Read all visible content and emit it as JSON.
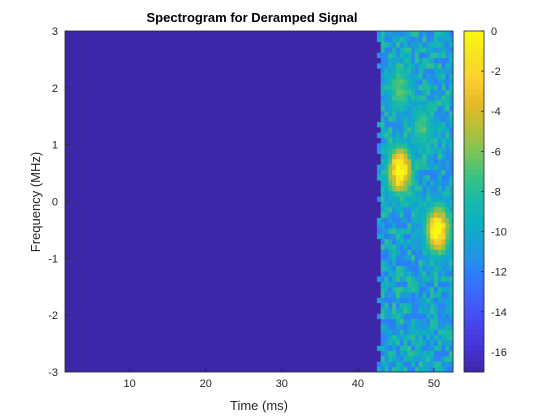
{
  "chart_data": {
    "type": "heatmap",
    "title": "Spectrogram for Deramped Signal",
    "xlabel": "Time (ms)",
    "ylabel": "Frequency (MHz)",
    "xlim": [
      1.5,
      52.5
    ],
    "ylim": [
      -3,
      3
    ],
    "x_ticks": [
      10,
      20,
      30,
      40,
      50
    ],
    "y_ticks": [
      -3,
      -2,
      -1,
      0,
      1,
      2,
      3
    ],
    "clim": [
      -17,
      0
    ],
    "colorbar_ticks": [
      0,
      -2,
      -4,
      -6,
      -8,
      -10,
      -12,
      -14,
      -16
    ],
    "colormap": "parula",
    "colormap_stops": [
      "#3e26a8",
      "#4433d6",
      "#4746eb",
      "#4060f8",
      "#2d7dfb",
      "#1e99de",
      "#0dadc5",
      "#17b9aa",
      "#38c285",
      "#7ac458",
      "#b5c039",
      "#e3b928",
      "#fbcf31",
      "#f6e421",
      "#f9fb0e"
    ],
    "background_level": -17,
    "signal": {
      "time_range": [
        42.5,
        52.5
      ],
      "onset_time": 43,
      "freq_range": [
        -3,
        3
      ],
      "hotspots": [
        {
          "time": 45.5,
          "freq": 0.55,
          "level": -0.5
        },
        {
          "time": 50.5,
          "freq": -0.5,
          "level": -0.5
        },
        {
          "time": 45.5,
          "freq": 2.0,
          "level": -7.5
        },
        {
          "time": 48.5,
          "freq": 1.3,
          "level": -8
        }
      ]
    }
  }
}
